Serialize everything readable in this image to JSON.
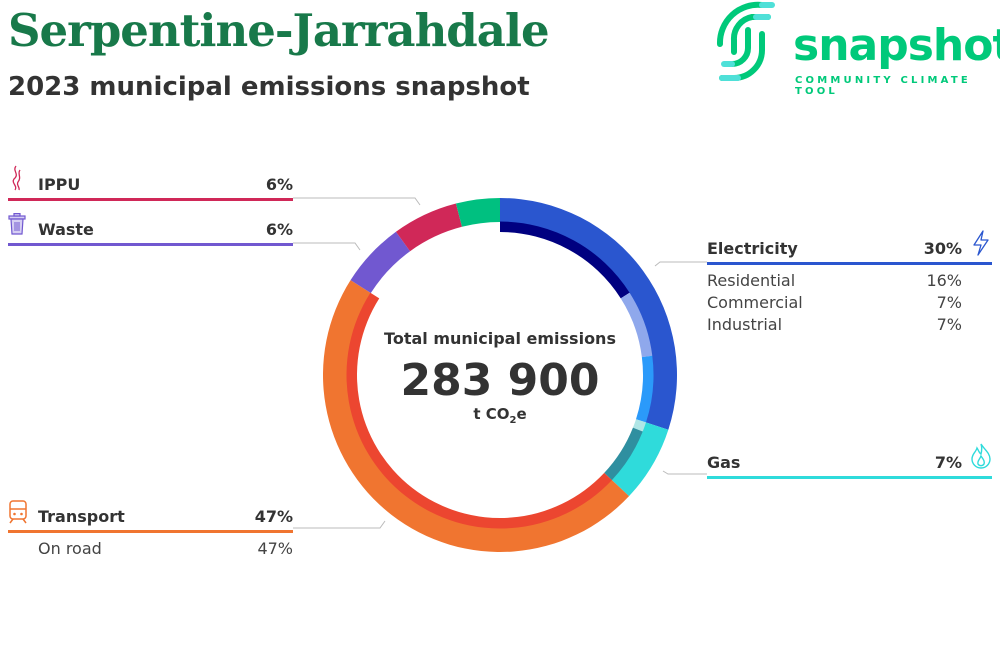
{
  "header": {
    "title": "Serpentine-Jarrahdale",
    "subtitle": "2023 municipal emissions snapshot"
  },
  "logo": {
    "word": "snapshot",
    "tagline": "COMMUNITY CLIMATE TOOL"
  },
  "chart_data": {
    "type": "pie",
    "title": "Total municipal emissions",
    "total": "283 900",
    "unit_prefix": "t CO",
    "unit_sub": "2",
    "unit_suffix": "e",
    "sectors": [
      {
        "name": "Electricity",
        "pct": "30%",
        "value": 30,
        "color": "#2a56cf",
        "icon": "lightning-icon",
        "subs": [
          {
            "name": "Residential",
            "pct": "16%",
            "value": 16,
            "color": "#000080"
          },
          {
            "name": "Commercial",
            "pct": "7%",
            "value": 7,
            "color": "#8fa8ec"
          },
          {
            "name": "Industrial",
            "pct": "7%",
            "value": 7,
            "color": "#2b9afa"
          }
        ]
      },
      {
        "name": "Gas",
        "pct": "7%",
        "value": 7,
        "color": "#2fdbdb",
        "icon": "flame-icon",
        "subs": [
          {
            "value": 1,
            "color": "#b0e6e6"
          },
          {
            "value": 6,
            "color": "#2f8fa0"
          }
        ]
      },
      {
        "name": "Transport",
        "pct": "47%",
        "value": 47,
        "color": "#f07530",
        "icon": "train-icon",
        "subs": [
          {
            "name": "On road",
            "pct": "47%",
            "value": 47,
            "color": "#ec4630"
          }
        ]
      },
      {
        "name": "Waste",
        "pct": "6%",
        "value": 6,
        "color": "#7158d0",
        "icon": "trash-icon",
        "subs": []
      },
      {
        "name": "IPPU",
        "pct": "6%",
        "value": 6,
        "color": "#d02858",
        "icon": "smoke-icon",
        "subs": []
      },
      {
        "value": 4,
        "color": "#00c080",
        "subs": []
      }
    ]
  }
}
